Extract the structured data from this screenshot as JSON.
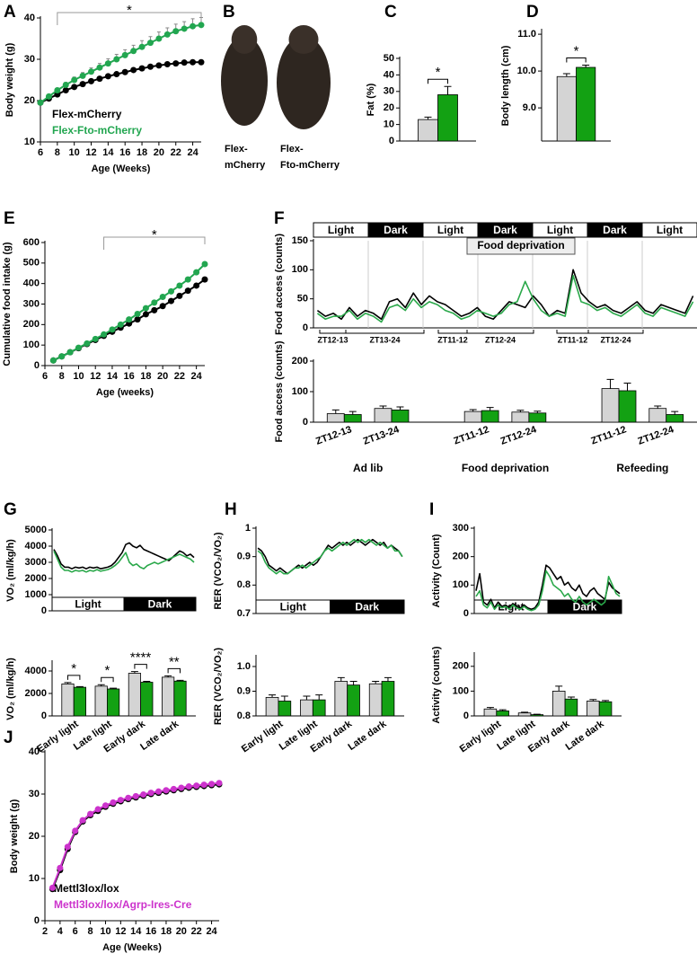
{
  "chart_data": [
    {
      "type": "line",
      "panel": "A",
      "ylabel": "Body weight (g)",
      "xlabel": "Age (Weeks)",
      "xlim": [
        6,
        25
      ],
      "xticks": [
        6,
        8,
        10,
        12,
        14,
        16,
        18,
        20,
        22,
        24
      ],
      "ylim": [
        10,
        40
      ],
      "yticks": [
        10,
        20,
        30,
        40
      ],
      "markers": true,
      "x": [
        6,
        7,
        8,
        9,
        10,
        11,
        12,
        13,
        14,
        15,
        16,
        17,
        18,
        19,
        20,
        21,
        22,
        23,
        24,
        25
      ],
      "series": [
        {
          "name": "Flex-mCherry",
          "color": "#000000",
          "values": [
            19.5,
            20.5,
            21.5,
            22.5,
            23.3,
            24,
            24.7,
            25.3,
            25.9,
            26.4,
            26.9,
            27.4,
            27.8,
            28.2,
            28.5,
            28.8,
            29,
            29.2,
            29.3,
            29.3
          ]
        },
        {
          "name": "Flex-Fto-mCherry",
          "color": "#22a650",
          "values": [
            19.5,
            21,
            22.5,
            23.8,
            25,
            26,
            27,
            28,
            29,
            30,
            31,
            32,
            33,
            34,
            35,
            36,
            36.8,
            37.4,
            38,
            38.3
          ],
          "errors": [
            0.3,
            0.4,
            0.5,
            0.6,
            0.7,
            0.8,
            0.9,
            1,
            1.1,
            1.2,
            1.3,
            1.4,
            1.5,
            1.5,
            1.6,
            1.6,
            1.7,
            1.7,
            1.8,
            1.8
          ]
        }
      ],
      "bracket": {
        "text": "*",
        "from": 8,
        "to": 25
      }
    },
    {
      "type": "image",
      "panel": "B",
      "captions": [
        [
          "Flex-",
          "mCherry"
        ],
        [
          "Flex-",
          "Fto-mCherry"
        ]
      ]
    },
    {
      "type": "bar",
      "panel": "C",
      "ylabel": "Fat (%)",
      "ylim": [
        0,
        50
      ],
      "yticks": [
        0,
        10,
        20,
        30,
        40,
        50
      ],
      "series": [
        {
          "color": "#d4d4d4",
          "values": [
            13
          ],
          "errors": [
            1.5
          ]
        },
        {
          "color": "#13a113",
          "values": [
            28
          ],
          "errors": [
            5
          ]
        }
      ],
      "annotations": [
        "*"
      ]
    },
    {
      "type": "bar",
      "panel": "D",
      "ylabel": "Body length (cm)",
      "ylim": [
        8.1,
        11.1
      ],
      "yticks": [
        {
          "value": 9,
          "label": "9.0"
        },
        {
          "value": 10,
          "label": "10.0"
        },
        {
          "value": 11,
          "label": "11.0"
        }
      ],
      "series": [
        {
          "color": "#d4d4d4",
          "values": [
            9.85
          ],
          "errors": [
            0.08
          ]
        },
        {
          "color": "#13a113",
          "values": [
            10.1
          ],
          "errors": [
            0.06
          ]
        }
      ],
      "annotations": [
        "*"
      ]
    },
    {
      "type": "line",
      "panel": "E",
      "ylabel": "Cumulative food intake (g)",
      "xlabel": "Age (weeks)",
      "xlim": [
        6,
        25
      ],
      "xticks": [
        6,
        8,
        10,
        12,
        14,
        16,
        18,
        20,
        22,
        24
      ],
      "ylim": [
        0,
        600
      ],
      "yticks": [
        0,
        100,
        200,
        300,
        400,
        500,
        600
      ],
      "markers": true,
      "x": [
        7,
        8,
        9,
        10,
        11,
        12,
        13,
        14,
        15,
        16,
        17,
        18,
        19,
        20,
        21,
        22,
        23,
        24,
        25
      ],
      "series": [
        {
          "color": "#000000",
          "values": [
            25,
            45,
            65,
            85,
            105,
            125,
            145,
            165,
            185,
            205,
            225,
            250,
            270,
            290,
            315,
            340,
            365,
            390,
            420
          ]
        },
        {
          "color": "#22a650",
          "values": [
            25,
            45,
            65,
            87,
            108,
            130,
            152,
            176,
            200,
            225,
            252,
            280,
            307,
            335,
            362,
            390,
            420,
            455,
            495
          ]
        }
      ],
      "bracket": {
        "text": "*",
        "from": 13,
        "to": 25
      }
    },
    {
      "type": "line",
      "panel": "F",
      "ylabel": "Food access (counts)",
      "ylim": [
        0,
        150
      ],
      "yticks": [
        0,
        50,
        100,
        150
      ],
      "periods": [
        {
          "label": "Light",
          "dark": false
        },
        {
          "label": "Dark",
          "dark": true
        },
        {
          "label": "Light",
          "dark": false
        },
        {
          "label": "Dark",
          "dark": true
        },
        {
          "label": "Light",
          "dark": false
        },
        {
          "label": "Dark",
          "dark": true
        },
        {
          "label": "Light",
          "dark": false
        }
      ],
      "highlight": "Food deprivation",
      "brackets": [
        "ZT12-13",
        "ZT13-24",
        "ZT11-12",
        "ZT12-24",
        "ZT11-12",
        "ZT12-24"
      ],
      "series": [
        {
          "color": "#000000",
          "values": [
            30,
            20,
            25,
            15,
            35,
            20,
            30,
            25,
            15,
            45,
            50,
            35,
            60,
            40,
            55,
            45,
            40,
            30,
            20,
            25,
            35,
            20,
            15,
            30,
            45,
            40,
            35,
            55,
            40,
            20,
            30,
            25,
            100,
            60,
            45,
            35,
            40,
            30,
            25,
            35,
            45,
            30,
            25,
            40,
            35,
            30,
            25,
            55
          ]
        },
        {
          "color": "#2aa84a",
          "values": [
            25,
            15,
            20,
            20,
            30,
            15,
            25,
            20,
            10,
            35,
            40,
            30,
            50,
            35,
            45,
            40,
            30,
            25,
            15,
            20,
            30,
            25,
            20,
            25,
            40,
            45,
            80,
            50,
            30,
            20,
            25,
            20,
            90,
            45,
            40,
            30,
            35,
            25,
            20,
            30,
            40,
            25,
            20,
            35,
            30,
            25,
            20,
            45
          ]
        }
      ]
    },
    {
      "type": "bar",
      "ylabel": "Food access (counts)",
      "ylim": [
        0,
        200
      ],
      "yticks": [
        0,
        100,
        200
      ],
      "categories": [
        "ZT12-13",
        "ZT13-24",
        "ZT11-12",
        "ZT12-24",
        "ZT11-12",
        "ZT12-24"
      ],
      "groups": [
        "Ad lib",
        "Food deprivation",
        "Refeeding"
      ],
      "series": [
        {
          "color": "#d4d4d4",
          "values": [
            28,
            45,
            35,
            33,
            110,
            45
          ],
          "errors": [
            12,
            8,
            6,
            6,
            30,
            8
          ]
        },
        {
          "color": "#13a113",
          "values": [
            25,
            40,
            38,
            30,
            103,
            25
          ],
          "errors": [
            10,
            10,
            10,
            6,
            25,
            10
          ]
        }
      ]
    },
    {
      "type": "line",
      "panel": "G",
      "ylabel": "VO₂ (ml/kg/h)",
      "ylim": [
        0,
        5000
      ],
      "yticks": [
        0,
        1000,
        2000,
        3000,
        4000,
        5000
      ],
      "periods": [
        {
          "label": "Light",
          "dark": false
        },
        {
          "label": "Dark",
          "dark": true
        }
      ],
      "series": [
        {
          "color": "#000000",
          "values": [
            3800,
            3400,
            2900,
            2700,
            2700,
            2600,
            2700,
            2650,
            2700,
            2600,
            2700,
            2650,
            2700,
            2600,
            2650,
            2700,
            2800,
            3000,
            3300,
            3600,
            4100,
            4200,
            4000,
            3900,
            4050,
            3800,
            3700,
            3600,
            3500,
            3400,
            3300,
            3200,
            3100,
            3300,
            3500,
            3700,
            3600,
            3400,
            3500,
            3300
          ]
        },
        {
          "color": "#2aa84a",
          "values": [
            3700,
            3200,
            2700,
            2500,
            2500,
            2400,
            2500,
            2450,
            2500,
            2400,
            2500,
            2450,
            2550,
            2450,
            2500,
            2550,
            2650,
            2800,
            3000,
            3300,
            3600,
            3000,
            2800,
            2900,
            2700,
            2600,
            2800,
            2900,
            3000,
            2900,
            3000,
            3100,
            3200,
            3300,
            3400,
            3500,
            3400,
            3300,
            3200,
            3000
          ]
        }
      ]
    },
    {
      "type": "bar",
      "ylabel": "VO₂ (ml/kg/h)",
      "ylim": [
        0,
        4800
      ],
      "yticks": [
        0,
        2000,
        4000
      ],
      "categories": [
        "Early light",
        "Late light",
        "Early dark",
        "Late dark"
      ],
      "series": [
        {
          "color": "#d4d4d4",
          "values": [
            2850,
            2650,
            3800,
            3450
          ],
          "errors": [
            120,
            130,
            150,
            120
          ]
        },
        {
          "color": "#13a113",
          "values": [
            2550,
            2400,
            3000,
            3100
          ],
          "errors": [
            60,
            70,
            80,
            70
          ]
        }
      ],
      "annotations": [
        "*",
        "*",
        "****",
        "**"
      ]
    },
    {
      "type": "line",
      "panel": "H",
      "ylabel": "RER (VCO₂/VO₂)",
      "ylim": [
        0.7,
        1
      ],
      "yticks": [
        0.7,
        0.8,
        0.9,
        1
      ],
      "periods": [
        {
          "label": "Light",
          "dark": false
        },
        {
          "label": "Dark",
          "dark": true
        }
      ],
      "series": [
        {
          "color": "#000000",
          "values": [
            0.93,
            0.92,
            0.9,
            0.87,
            0.86,
            0.85,
            0.86,
            0.85,
            0.84,
            0.85,
            0.86,
            0.87,
            0.86,
            0.87,
            0.88,
            0.87,
            0.88,
            0.9,
            0.92,
            0.94,
            0.93,
            0.94,
            0.95,
            0.94,
            0.95,
            0.94,
            0.95,
            0.96,
            0.95,
            0.94,
            0.95,
            0.96,
            0.95,
            0.94,
            0.95,
            0.93,
            0.94,
            0.93,
            0.92,
            0.9
          ]
        },
        {
          "color": "#2aa84a",
          "values": [
            0.92,
            0.91,
            0.88,
            0.86,
            0.85,
            0.84,
            0.85,
            0.84,
            0.84,
            0.85,
            0.86,
            0.86,
            0.87,
            0.86,
            0.87,
            0.88,
            0.89,
            0.9,
            0.92,
            0.93,
            0.92,
            0.93,
            0.94,
            0.95,
            0.94,
            0.95,
            0.96,
            0.95,
            0.96,
            0.95,
            0.96,
            0.95,
            0.94,
            0.95,
            0.94,
            0.93,
            0.94,
            0.92,
            0.92,
            0.9
          ]
        }
      ]
    },
    {
      "type": "bar",
      "ylabel": "RER (VCO₂/VO₂)",
      "ylim": [
        0.8,
        1.04
      ],
      "yticks": [
        0.8,
        0.9,
        {
          "value": 1,
          "label": "1.0"
        }
      ],
      "categories": [
        "Early light",
        "Late light",
        "Early dark",
        "Late dark"
      ],
      "series": [
        {
          "color": "#d4d4d4",
          "values": [
            0.875,
            0.865,
            0.94,
            0.93
          ],
          "errors": [
            0.01,
            0.015,
            0.015,
            0.01
          ]
        },
        {
          "color": "#13a113",
          "values": [
            0.86,
            0.865,
            0.925,
            0.94
          ],
          "errors": [
            0.02,
            0.02,
            0.015,
            0.015
          ]
        }
      ]
    },
    {
      "type": "line",
      "panel": "I",
      "ylabel": "Activity (Count)",
      "ylim": [
        0,
        300
      ],
      "yticks": [
        0,
        100,
        200,
        300
      ],
      "periods": [
        {
          "label": "Light",
          "dark": false
        },
        {
          "label": "Dark",
          "dark": true
        }
      ],
      "series": [
        {
          "color": "#000000",
          "values": [
            80,
            140,
            40,
            30,
            50,
            20,
            40,
            25,
            30,
            20,
            35,
            25,
            20,
            30,
            20,
            15,
            20,
            40,
            100,
            170,
            160,
            140,
            120,
            130,
            100,
            110,
            90,
            80,
            100,
            70,
            60,
            80,
            90,
            70,
            60,
            50,
            110,
            90,
            80,
            70
          ]
        },
        {
          "color": "#2aa84a",
          "values": [
            60,
            80,
            30,
            20,
            40,
            15,
            30,
            20,
            25,
            15,
            30,
            20,
            15,
            25,
            15,
            10,
            15,
            30,
            80,
            150,
            130,
            100,
            90,
            80,
            60,
            70,
            50,
            40,
            60,
            40,
            30,
            40,
            50,
            40,
            30,
            40,
            130,
            100,
            70,
            60
          ]
        }
      ]
    },
    {
      "type": "bar",
      "ylabel": "Activity (counts)",
      "ylim": [
        0,
        250
      ],
      "yticks": [
        0,
        100,
        200
      ],
      "categories": [
        "Early light",
        "Late light",
        "Early dark",
        "Late dark"
      ],
      "series": [
        {
          "color": "#d4d4d4",
          "values": [
            28,
            12,
            100,
            60
          ],
          "errors": [
            6,
            3,
            20,
            6
          ]
        },
        {
          "color": "#13a113",
          "values": [
            20,
            5,
            68,
            57
          ],
          "errors": [
            5,
            2,
            8,
            5
          ]
        }
      ]
    },
    {
      "type": "line",
      "panel": "J",
      "ylabel": "Body weight (g)",
      "xlabel": "Age (Weeks)",
      "xlim": [
        2,
        25
      ],
      "xticks": [
        2,
        4,
        6,
        8,
        10,
        12,
        14,
        16,
        18,
        20,
        22,
        24
      ],
      "ylim": [
        0,
        40
      ],
      "yticks": [
        0,
        10,
        20,
        30,
        40
      ],
      "markers": true,
      "x": [
        3,
        4,
        5,
        6,
        7,
        8,
        9,
        10,
        11,
        12,
        13,
        14,
        15,
        16,
        17,
        18,
        19,
        20,
        21,
        22,
        23,
        24,
        25
      ],
      "series": [
        {
          "name": "Mettl3lox/lox",
          "color": "#000000",
          "values": [
            7.5,
            12,
            17,
            21,
            23.5,
            25,
            26,
            27,
            27.7,
            28.3,
            28.8,
            29.2,
            29.6,
            30,
            30.3,
            30.6,
            30.9,
            31.2,
            31.5,
            31.7,
            31.9,
            32.1,
            32.3
          ]
        },
        {
          "name": "Mettl3lox/lox/Agrp-Ires-Cre",
          "color": "#cc33cc",
          "values": [
            7.8,
            12.5,
            17.5,
            21.3,
            23.8,
            25.3,
            26.4,
            27.3,
            28,
            28.6,
            29.1,
            29.5,
            29.9,
            30.3,
            30.6,
            30.9,
            31.2,
            31.5,
            31.8,
            32,
            32.2,
            32.4,
            32.6
          ]
        }
      ]
    }
  ]
}
